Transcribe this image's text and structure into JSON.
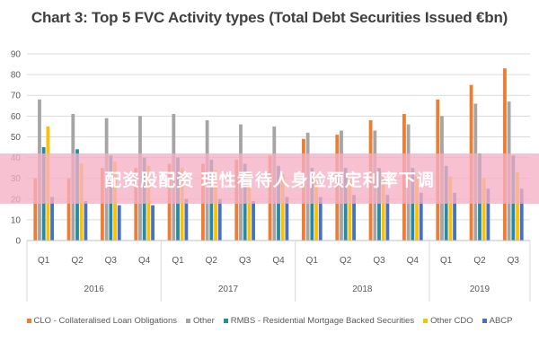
{
  "chart_data": {
    "type": "bar",
    "title": "Chart 3: Top 5 FVC Activity types (Total Debt Securities Issued €bn)",
    "ylim": [
      0,
      90
    ],
    "y_ticks": [
      0,
      10,
      20,
      30,
      40,
      50,
      60,
      70,
      80,
      90
    ],
    "grid": true,
    "legend_position": "bottom",
    "categories": [
      "Q1",
      "Q2",
      "Q3",
      "Q4",
      "Q1",
      "Q2",
      "Q3",
      "Q4",
      "Q1",
      "Q2",
      "Q3",
      "Q4",
      "Q1",
      "Q2",
      "Q3"
    ],
    "year_groups": [
      {
        "label": "2016",
        "count": 4
      },
      {
        "label": "2017",
        "count": 4
      },
      {
        "label": "2018",
        "count": 4
      },
      {
        "label": "2019",
        "count": 3
      }
    ],
    "series": [
      {
        "name": "CLO - Collateralised Loan Obligations",
        "color": "#ed7d31",
        "values": [
          30,
          30,
          35,
          35,
          37,
          37,
          39,
          41,
          49,
          51,
          58,
          61,
          68,
          75,
          83
        ]
      },
      {
        "name": "Other",
        "color": "#a5a5a5",
        "values": [
          68,
          61,
          59,
          60,
          61,
          58,
          56,
          55,
          52,
          53,
          53,
          56,
          60,
          66,
          67
        ]
      },
      {
        "name": "RMBS - Residential Mortgage Backed Securities",
        "color": "#258aa8",
        "values": [
          45,
          44,
          41,
          40,
          40,
          39,
          37,
          36,
          35,
          35,
          35,
          35,
          36,
          42,
          41
        ]
      },
      {
        "name": "Other CDO",
        "color": "#ffc000",
        "values": [
          55,
          37,
          38,
          36,
          35,
          34,
          33,
          32,
          31,
          31,
          31,
          31,
          31,
          30,
          33
        ]
      },
      {
        "name": "ABCP",
        "color": "#4472c4",
        "values": [
          21,
          19,
          17,
          17,
          20,
          20,
          19,
          21,
          21,
          22,
          22,
          23,
          23,
          25,
          25
        ]
      }
    ]
  },
  "overlay": {
    "watermark_text": "配资股配资 理性看待人身险预定利率下调"
  }
}
